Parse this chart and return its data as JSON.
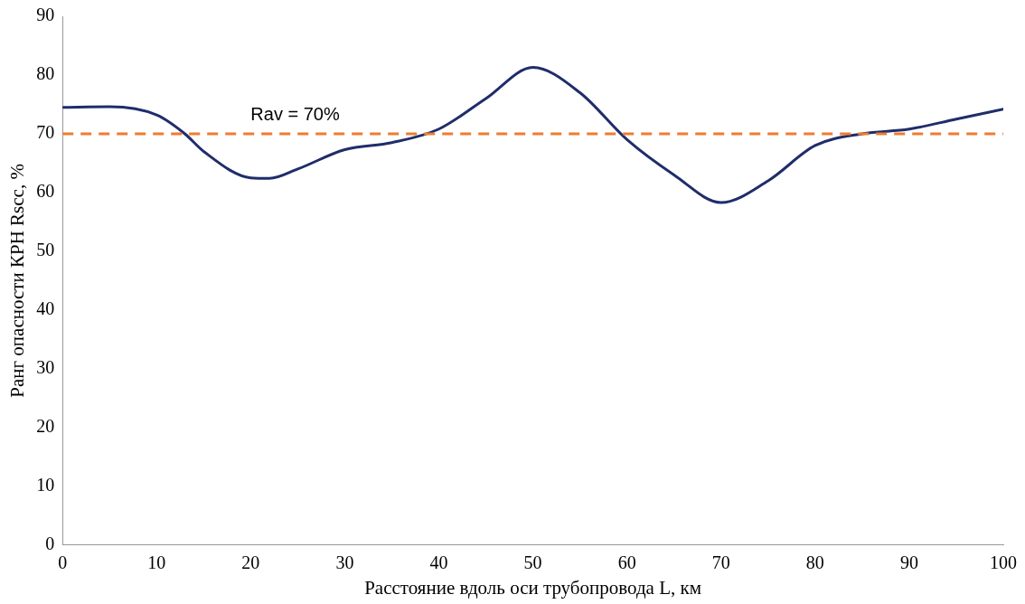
{
  "chart_data": {
    "type": "line",
    "xlabel": "Расстояние вдоль оси трубопровода L, км",
    "ylabel": "Ранг опасности КРН Rscc, %",
    "x": [
      0,
      5,
      10,
      13,
      15,
      20,
      22,
      25,
      30,
      35,
      40,
      45,
      50,
      55,
      60,
      65,
      70,
      75,
      80,
      85,
      90,
      95,
      100
    ],
    "series": [
      {
        "color": "#1f2d6b",
        "values": [
          74.5,
          74.6,
          73.2,
          70,
          67,
          62.5,
          62.4,
          64,
          67.3,
          68.5,
          70.8,
          76,
          81.3,
          77,
          69,
          63,
          58.3,
          62,
          68,
          70,
          70.8,
          72.5,
          74.2
        ]
      }
    ],
    "xlim": [
      0,
      100
    ],
    "xticks": [
      0,
      10,
      20,
      30,
      40,
      50,
      60,
      70,
      80,
      90,
      100
    ],
    "ylim": [
      0,
      90
    ],
    "yticks": [
      0,
      10,
      20,
      30,
      40,
      50,
      60,
      70,
      80,
      90
    ],
    "grid": false,
    "legend": false,
    "marker": "none",
    "line_style": "solid",
    "ref_lines": [
      {
        "axis": "y",
        "value": 70,
        "label": "Rav = 70%",
        "color": "#ed7d31",
        "line_style": "dashed"
      }
    ]
  }
}
